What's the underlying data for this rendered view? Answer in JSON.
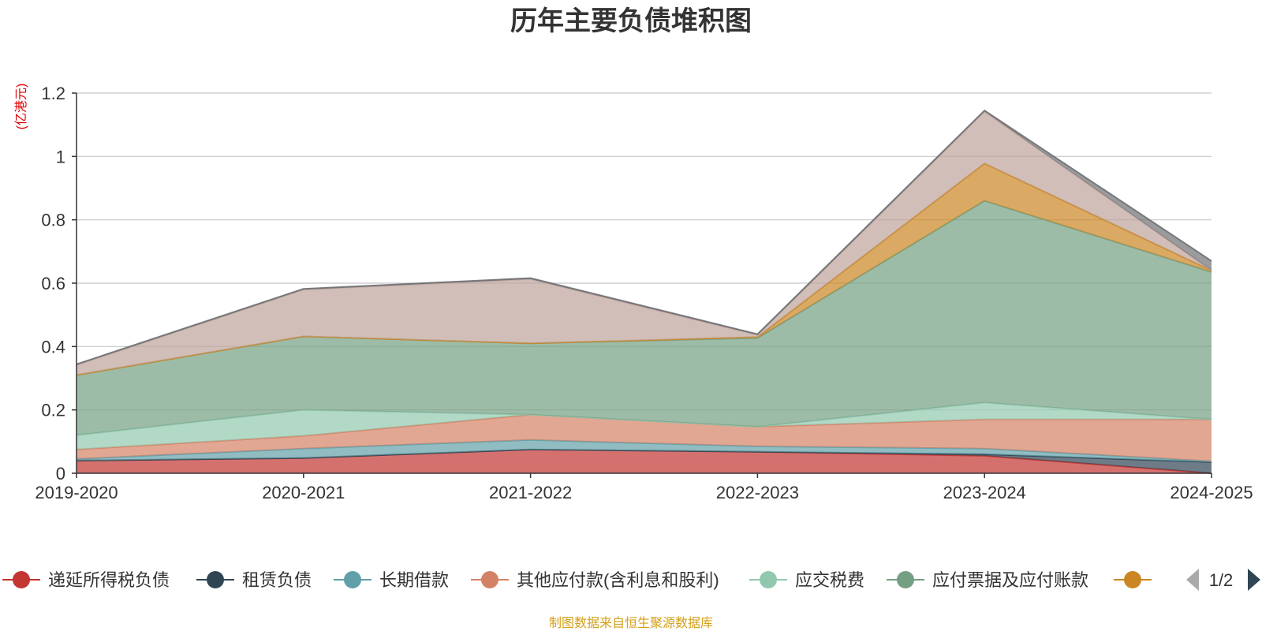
{
  "chart_data": {
    "type": "area",
    "stacked": true,
    "title": "历年主要负债堆积图",
    "unit_label": "(亿港元)",
    "categories": [
      "2019-2020",
      "2020-2021",
      "2021-2022",
      "2022-2023",
      "2023-2024",
      "2024-2025"
    ],
    "ylim": [
      0,
      1.2
    ],
    "yticks": [
      0,
      0.2,
      0.4,
      0.6,
      0.8,
      1,
      1.2
    ],
    "ytick_labels": [
      "0",
      "0.2",
      "0.4",
      "0.6",
      "0.8",
      "1",
      "1.2"
    ],
    "grid": true,
    "legend_position": "bottom",
    "series": [
      {
        "name": "递延所得税负债",
        "color": "#c23531",
        "values": [
          0.04,
          0.048,
          0.075,
          0.068,
          0.055,
          0.0
        ]
      },
      {
        "name": "租赁负债",
        "color": "#2f4554",
        "values": [
          0.0,
          0.0,
          0.0,
          0.0,
          0.005,
          0.035
        ]
      },
      {
        "name": "长期借款",
        "color": "#61a0a8",
        "values": [
          0.005,
          0.03,
          0.03,
          0.017,
          0.018,
          0.003
        ]
      },
      {
        "name": "其他应付款(含利息和股利)",
        "color": "#d48265",
        "values": [
          0.03,
          0.04,
          0.08,
          0.062,
          0.092,
          0.132
        ]
      },
      {
        "name": "应交税费",
        "color": "#91c7ae",
        "values": [
          0.045,
          0.082,
          0.0,
          0.0,
          0.053,
          0.0
        ]
      },
      {
        "name": "应付票据及应付账款",
        "color": "#749f83",
        "values": [
          0.19,
          0.232,
          0.225,
          0.28,
          0.637,
          0.465
        ]
      },
      {
        "name": "",
        "color": "#ca8622",
        "values": [
          0.0,
          0.0,
          0.0,
          0.003,
          0.118,
          0.005
        ]
      },
      {
        "name": "",
        "color": "#bda29a",
        "values": [
          0.032,
          0.148,
          0.203,
          0.007,
          0.164,
          0.0
        ]
      },
      {
        "name": "",
        "color": "#6e7074",
        "values": [
          0.002,
          0.002,
          0.003,
          0.002,
          0.003,
          0.03
        ]
      }
    ]
  },
  "legend": {
    "page": "1/2"
  },
  "source_note": "制图数据来自恒生聚源数据库"
}
